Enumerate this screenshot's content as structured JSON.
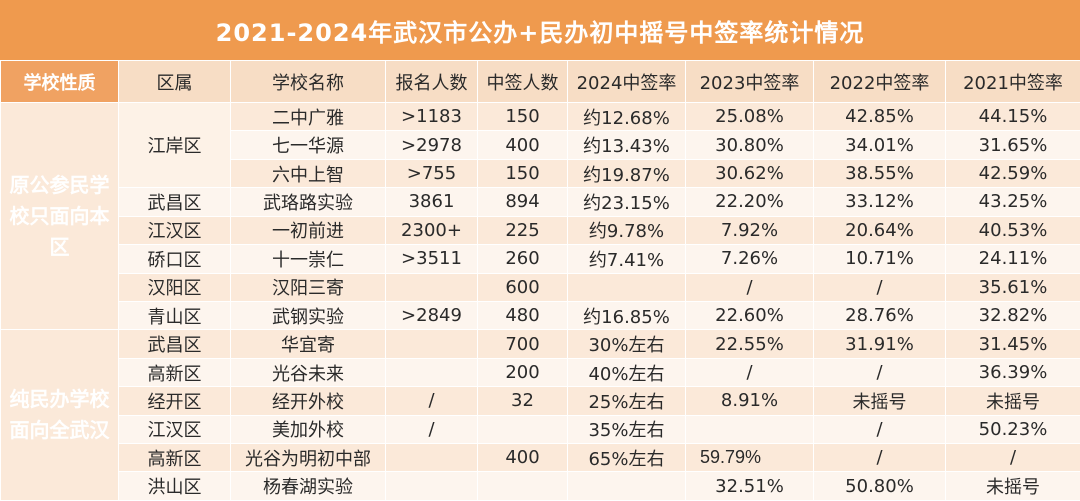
{
  "title": "2021-2024年武汉市公办+民办初中摇号中签率统计情况",
  "headers": {
    "nature": "学校性质",
    "district": "区属",
    "school": "学校名称",
    "applicants": "报名人数",
    "admitted": "中签人数",
    "r2024": "2024中签率",
    "r2023": "2023中签率",
    "r2022": "2022中签率",
    "r2021": "2021中签率"
  },
  "groups": [
    {
      "label": "原公参民学校只面向本区"
    },
    {
      "label": "纯民办学校面向全武汉"
    }
  ],
  "rows": [
    {
      "district": "江岸区",
      "school": "二中广雅",
      "applicants": ">1183",
      "admitted": "150",
      "r2024": "约12.68%",
      "r2023": "25.08%",
      "r2022": "42.85%",
      "r2021": "44.15%"
    },
    {
      "district": "",
      "school": "七一华源",
      "applicants": ">2978",
      "admitted": "400",
      "r2024": "约13.43%",
      "r2023": "30.80%",
      "r2022": "34.01%",
      "r2021": "31.65%"
    },
    {
      "district": "",
      "school": "六中上智",
      "applicants": ">755",
      "admitted": "150",
      "r2024": "约19.87%",
      "r2023": "30.62%",
      "r2022": "38.55%",
      "r2021": "42.59%"
    },
    {
      "district": "武昌区",
      "school": "武珞路实验",
      "applicants": "3861",
      "admitted": "894",
      "r2024": "约23.15%",
      "r2023": "22.20%",
      "r2022": "33.12%",
      "r2021": "43.25%"
    },
    {
      "district": "江汉区",
      "school": "一初前进",
      "applicants": "2300+",
      "admitted": "225",
      "r2024": "约9.78%",
      "r2023": "7.92%",
      "r2022": "20.64%",
      "r2021": "40.53%"
    },
    {
      "district": "硚口区",
      "school": "十一崇仁",
      "applicants": ">3511",
      "admitted": "260",
      "r2024": "约7.41%",
      "r2023": "7.26%",
      "r2022": "10.71%",
      "r2021": "24.11%"
    },
    {
      "district": "汉阳区",
      "school": "汉阳三寄",
      "applicants": "",
      "admitted": "600",
      "r2024": "",
      "r2023": "/",
      "r2022": "/",
      "r2021": "35.61%"
    },
    {
      "district": "青山区",
      "school": "武钢实验",
      "applicants": ">2849",
      "admitted": "480",
      "r2024": "约16.85%",
      "r2023": "22.60%",
      "r2022": "28.76%",
      "r2021": "32.82%"
    },
    {
      "district": "武昌区",
      "school": "华宜寄",
      "applicants": "",
      "admitted": "700",
      "r2024": "30%左右",
      "r2023": "22.55%",
      "r2022": "31.91%",
      "r2021": "31.45%"
    },
    {
      "district": "高新区",
      "school": "光谷未来",
      "applicants": "",
      "admitted": "200",
      "r2024": "40%左右",
      "r2023": "/",
      "r2022": "/",
      "r2021": "36.39%"
    },
    {
      "district": "经开区",
      "school": "经开外校",
      "applicants": "/",
      "admitted": "32",
      "r2024": "25%左右",
      "r2023": "8.91%",
      "r2022": "未摇号",
      "r2021": "未摇号"
    },
    {
      "district": "江汉区",
      "school": "美加外校",
      "applicants": "/",
      "admitted": "",
      "r2024": "35%左右",
      "r2023": "",
      "r2022": "/",
      "r2021": "50.23%"
    },
    {
      "district": "高新区",
      "school": "光谷为明初中部",
      "applicants": "",
      "admitted": "400",
      "r2024": "65%左右",
      "r2023": "59.79%",
      "r2022": "/",
      "r2021": "/"
    },
    {
      "district": "洪山区",
      "school": "杨春湖实验",
      "applicants": "",
      "admitted": "",
      "r2024": "",
      "r2023": "32.51%",
      "r2022": "50.80%",
      "r2021": "未摇号"
    }
  ]
}
